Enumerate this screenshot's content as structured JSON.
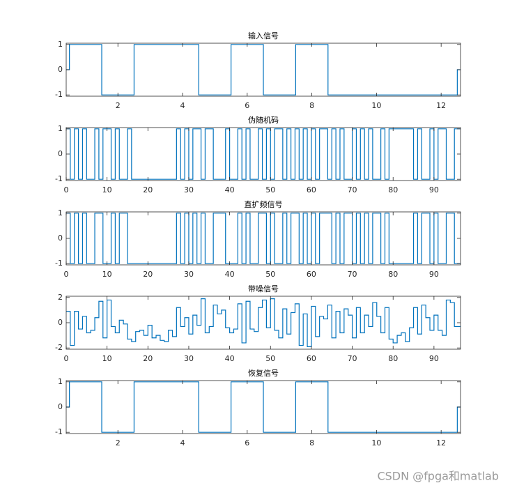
{
  "chart_data": [
    {
      "type": "stairs",
      "title": "输入信号",
      "x": [
        0.4,
        0.5,
        1.5,
        2.5,
        3.5,
        4.5,
        5.5,
        6.5,
        7.5,
        8.5,
        9.5,
        10.5,
        11.5,
        12.5
      ],
      "series": [
        {
          "color": "#0072bd",
          "values": [
            0,
            1,
            -1,
            1,
            1,
            -1,
            1,
            -1,
            1,
            -1,
            -1,
            -1,
            -1,
            0
          ]
        }
      ],
      "xlim": [
        0.4,
        12.6
      ],
      "xticks": [
        2,
        4,
        6,
        8,
        10,
        12
      ],
      "ylim": [
        -1.05,
        1.05
      ],
      "yticks": [
        -1,
        0,
        1
      ]
    },
    {
      "type": "stairs",
      "title": "伪随机码",
      "x": [
        0,
        1,
        2,
        3,
        4,
        5,
        6,
        7,
        8,
        9,
        10,
        11,
        12,
        13,
        14,
        15,
        16,
        17,
        18,
        19,
        20,
        21,
        22,
        23,
        24,
        25,
        26,
        27,
        28,
        29,
        30,
        31,
        32,
        33,
        34,
        35,
        36,
        37,
        38,
        39,
        40,
        41,
        42,
        43,
        44,
        45,
        46,
        47,
        48,
        49,
        50,
        51,
        52,
        53,
        54,
        55,
        56,
        57,
        58,
        59,
        60,
        61,
        62,
        63,
        64,
        65,
        66,
        67,
        68,
        69,
        70,
        71,
        72,
        73,
        74,
        75,
        76,
        77,
        78,
        79,
        80,
        81,
        82,
        83,
        84,
        85,
        86,
        87,
        88,
        89,
        90,
        91,
        92,
        93,
        94,
        95
      ],
      "series": [
        {
          "color": "#0072bd",
          "values": [
            1,
            -1,
            1,
            -1,
            1,
            -1,
            -1,
            1,
            -1,
            1,
            1,
            -1,
            1,
            -1,
            -1,
            1,
            -1,
            -1,
            -1,
            -1,
            -1,
            -1,
            -1,
            -1,
            -1,
            -1,
            -1,
            1,
            -1,
            1,
            -1,
            1,
            1,
            -1,
            1,
            1,
            -1,
            -1,
            -1,
            1,
            -1,
            -1,
            1,
            -1,
            1,
            -1,
            -1,
            1,
            -1,
            1,
            -1,
            1,
            1,
            -1,
            1,
            -1,
            1,
            -1,
            1,
            -1,
            1,
            -1,
            1,
            1,
            -1,
            1,
            -1,
            1,
            -1,
            -1,
            1,
            -1,
            1,
            -1,
            1,
            -1,
            -1,
            1,
            -1,
            1,
            1,
            1,
            1,
            1,
            1,
            -1,
            1,
            -1,
            -1,
            1,
            -1,
            1,
            1,
            -1,
            -1,
            1
          ]
        }
      ],
      "xlim": [
        0,
        96.5
      ],
      "xticks": [
        0,
        10,
        20,
        30,
        40,
        50,
        60,
        70,
        80,
        90
      ],
      "ylim": [
        -1.05,
        1.05
      ],
      "yticks": [
        -1,
        0,
        1
      ]
    },
    {
      "type": "stairs",
      "title": "直扩频信号",
      "x": [
        0,
        1,
        2,
        3,
        4,
        5,
        6,
        7,
        8,
        9,
        10,
        11,
        12,
        13,
        14,
        15,
        16,
        17,
        18,
        19,
        20,
        21,
        22,
        23,
        24,
        25,
        26,
        27,
        28,
        29,
        30,
        31,
        32,
        33,
        34,
        35,
        36,
        37,
        38,
        39,
        40,
        41,
        42,
        43,
        44,
        45,
        46,
        47,
        48,
        49,
        50,
        51,
        52,
        53,
        54,
        55,
        56,
        57,
        58,
        59,
        60,
        61,
        62,
        63,
        64,
        65,
        66,
        67,
        68,
        69,
        70,
        71,
        72,
        73,
        74,
        75,
        76,
        77,
        78,
        79,
        80,
        81,
        82,
        83,
        84,
        85,
        86,
        87,
        88,
        89,
        90,
        91,
        92,
        93,
        94,
        95
      ],
      "series": [
        {
          "color": "#0072bd",
          "values": [
            1,
            -1,
            1,
            -1,
            1,
            -1,
            -1,
            1,
            1,
            -1,
            -1,
            1,
            -1,
            1,
            1,
            -1,
            -1,
            -1,
            -1,
            -1,
            -1,
            -1,
            -1,
            -1,
            -1,
            -1,
            -1,
            1,
            -1,
            1,
            -1,
            1,
            -1,
            1,
            -1,
            -1,
            1,
            1,
            1,
            -1,
            -1,
            -1,
            1,
            -1,
            1,
            -1,
            -1,
            1,
            1,
            -1,
            1,
            -1,
            -1,
            1,
            -1,
            1,
            1,
            -1,
            1,
            -1,
            1,
            -1,
            1,
            1,
            1,
            -1,
            1,
            -1,
            1,
            1,
            -1,
            1,
            -1,
            1,
            -1,
            1,
            1,
            -1,
            1,
            -1,
            -1,
            -1,
            -1,
            -1,
            -1,
            1,
            -1,
            1,
            1,
            -1,
            1,
            -1,
            -1,
            1,
            1,
            -1
          ]
        }
      ],
      "xlim": [
        0,
        96.5
      ],
      "xticks": [
        0,
        10,
        20,
        30,
        40,
        50,
        60,
        70,
        80,
        90
      ],
      "ylim": [
        -1.05,
        1.05
      ],
      "yticks": [
        -1,
        0,
        1
      ]
    },
    {
      "type": "stairs",
      "title": "带噪信号",
      "x": [
        0,
        1,
        2,
        3,
        4,
        5,
        6,
        7,
        8,
        9,
        10,
        11,
        12,
        13,
        14,
        15,
        16,
        17,
        18,
        19,
        20,
        21,
        22,
        23,
        24,
        25,
        26,
        27,
        28,
        29,
        30,
        31,
        32,
        33,
        34,
        35,
        36,
        37,
        38,
        39,
        40,
        41,
        42,
        43,
        44,
        45,
        46,
        47,
        48,
        49,
        50,
        51,
        52,
        53,
        54,
        55,
        56,
        57,
        58,
        59,
        60,
        61,
        62,
        63,
        64,
        65,
        66,
        67,
        68,
        69,
        70,
        71,
        72,
        73,
        74,
        75,
        76,
        77,
        78,
        79,
        80,
        81,
        82,
        83,
        84,
        85,
        86,
        87,
        88,
        89,
        90,
        91,
        92,
        93,
        94,
        95
      ],
      "series": [
        {
          "color": "#0072bd",
          "values": [
            0.9,
            -1.8,
            0.9,
            -0.5,
            0.5,
            -0.8,
            -0.6,
            0.4,
            1.7,
            -1.2,
            1.8,
            -0.3,
            -0.8,
            0.2,
            -0.1,
            -1.3,
            -1.5,
            -0.7,
            -0.6,
            -1.0,
            -0.2,
            -1.2,
            -1.0,
            -1.4,
            -1.5,
            -0.6,
            -1.1,
            1.2,
            -0.3,
            0.4,
            -0.9,
            0.6,
            -0.2,
            1.9,
            -0.8,
            -0.3,
            1.4,
            0.7,
            1.0,
            -0.4,
            -0.8,
            -0.5,
            1.5,
            -1.6,
            1.7,
            -0.5,
            -0.7,
            1.2,
            1.8,
            -0.4,
            1.9,
            -0.6,
            -1.2,
            1.1,
            -0.9,
            0.8,
            1.5,
            -1.8,
            0.7,
            -1.9,
            1.3,
            -1.1,
            0.5,
            0.3,
            1.4,
            -1.2,
            0.9,
            -0.8,
            1.1,
            0.6,
            -1.2,
            1.2,
            -0.8,
            0.6,
            -0.3,
            1.6,
            0.5,
            -0.8,
            1.2,
            -1.3,
            -1.6,
            -1.0,
            -0.8,
            -1.5,
            -0.4,
            1.2,
            -0.9,
            1.4,
            0.4,
            -0.6,
            0.6,
            -0.6,
            -1.0,
            1.8,
            1.6,
            -0.3
          ]
        }
      ],
      "xlim": [
        0,
        96.5
      ],
      "xticks": [
        0,
        10,
        20,
        30,
        40,
        50,
        60,
        70,
        80,
        90
      ],
      "ylim": [
        -2.1,
        2.1
      ],
      "yticks": [
        -2,
        0,
        2
      ]
    },
    {
      "type": "stairs",
      "title": "恢复信号",
      "x": [
        0.4,
        0.5,
        1.5,
        2.5,
        3.5,
        4.5,
        5.5,
        6.5,
        7.5,
        8.5,
        9.5,
        10.5,
        11.5,
        12.5
      ],
      "series": [
        {
          "color": "#0072bd",
          "values": [
            0,
            1,
            -1,
            1,
            1,
            -1,
            1,
            -1,
            1,
            -1,
            -1,
            -1,
            -1,
            0
          ]
        }
      ],
      "xlim": [
        0.4,
        12.6
      ],
      "xticks": [
        2,
        4,
        6,
        8,
        10,
        12
      ],
      "ylim": [
        -1.05,
        1.05
      ],
      "yticks": [
        -1,
        0,
        1
      ]
    }
  ],
  "watermark": "CSDN @fpga和matlab"
}
